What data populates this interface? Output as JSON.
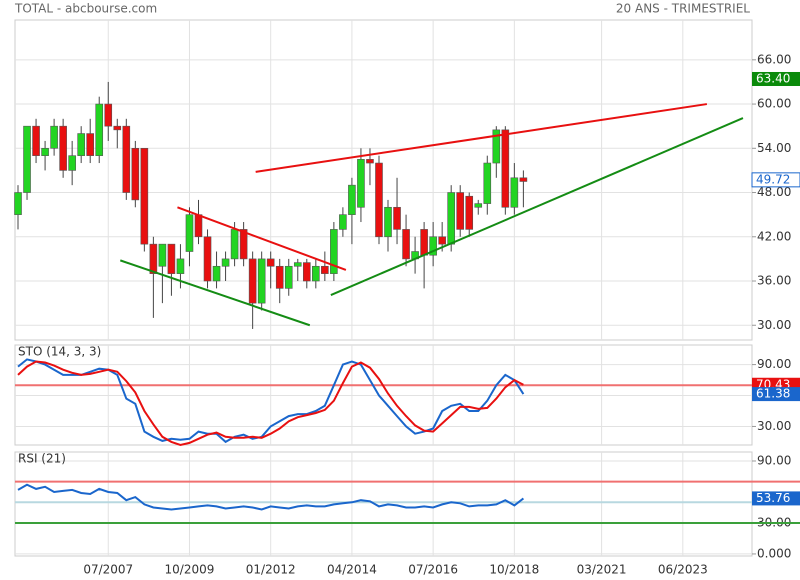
{
  "chart_data": [
    {
      "type": "candlestick",
      "title": "TOTAL - abcbourse.com",
      "subtitle": "20 ANS - TRIMESTRIEL",
      "x": [
        "2005-01",
        "2005-04",
        "2005-07",
        "2005-10",
        "2006-01",
        "2006-04",
        "2006-07",
        "2006-10",
        "2007-01",
        "2007-04",
        "2007-07",
        "2007-10",
        "2008-01",
        "2008-04",
        "2008-07",
        "2008-10",
        "2009-01",
        "2009-04",
        "2009-07",
        "2009-10",
        "2010-01",
        "2010-04",
        "2010-07",
        "2010-10",
        "2011-01",
        "2011-04",
        "2011-07",
        "2011-10",
        "2012-01",
        "2012-04",
        "2012-07",
        "2012-10",
        "2013-01",
        "2013-04",
        "2013-07",
        "2013-10",
        "2014-01",
        "2014-04",
        "2014-07",
        "2014-10",
        "2015-01",
        "2015-04",
        "2015-07",
        "2015-10",
        "2016-01",
        "2016-04",
        "2016-07",
        "2016-10",
        "2017-01",
        "2017-04",
        "2017-07",
        "2017-10",
        "2018-01",
        "2018-04",
        "2018-07",
        "2018-10",
        "2019-01"
      ],
      "open": [
        45,
        48,
        57,
        53,
        54,
        57,
        51,
        53,
        56,
        53,
        60,
        57,
        57,
        54,
        54,
        41,
        38,
        41,
        37,
        40,
        45,
        42,
        36,
        38,
        39,
        43,
        39,
        33,
        39,
        38,
        35,
        38,
        38.5,
        36,
        38,
        37,
        43,
        45,
        46,
        52.5,
        52,
        42,
        46,
        43,
        39,
        43,
        39.5,
        42,
        41,
        48,
        47.5,
        46,
        46.5,
        52,
        56.5,
        46,
        50
      ],
      "high": [
        49,
        57,
        58,
        55,
        58,
        58,
        55,
        57,
        58,
        61,
        63,
        58,
        58,
        55,
        54,
        42,
        41,
        41,
        41,
        46,
        47,
        43,
        40,
        40,
        44,
        44,
        40,
        40,
        40,
        39,
        39,
        39,
        39,
        39,
        40,
        44,
        46,
        50,
        54,
        54,
        53,
        47,
        50,
        45,
        42,
        44,
        44,
        44,
        49,
        49,
        48,
        47,
        53,
        57,
        57,
        52,
        51
      ],
      "low": [
        43,
        47,
        52,
        51,
        53,
        50,
        49,
        52,
        52,
        52,
        55,
        54,
        47,
        46,
        40,
        31,
        33,
        34,
        35,
        38,
        41,
        35,
        35,
        36,
        38,
        38,
        29.5,
        32,
        35,
        33,
        34,
        36,
        35,
        35,
        36,
        36,
        42,
        41,
        44,
        49,
        41,
        40,
        41,
        38,
        37,
        35,
        38,
        40,
        40,
        42,
        42,
        45,
        45,
        50,
        45,
        45,
        46
      ],
      "close": [
        48,
        57,
        53,
        54,
        57,
        51,
        53,
        56,
        53,
        60,
        57,
        56.5,
        48,
        47,
        41,
        37,
        41,
        37,
        39,
        45,
        42,
        36,
        38,
        39,
        43,
        39,
        33,
        39,
        38,
        35,
        38,
        38.5,
        36,
        38,
        37,
        43,
        45,
        49,
        52.5,
        52,
        42,
        46,
        43,
        39,
        40,
        39.5,
        42,
        41,
        48,
        43,
        43,
        46.5,
        52,
        56.5,
        46,
        50,
        49.5
      ],
      "up_color": "#22d422",
      "down_color": "#e81010",
      "xlim": [
        "2004-12",
        "2025-05"
      ],
      "xticks": [
        {
          "value": "2007-07",
          "label": "07/2007"
        },
        {
          "value": "2009-10",
          "label": "10/2009"
        },
        {
          "value": "2012-01",
          "label": "01/2012"
        },
        {
          "value": "2014-04",
          "label": "04/2014"
        },
        {
          "value": "2016-07",
          "label": "07/2016"
        },
        {
          "value": "2018-10",
          "label": "10/2018"
        },
        {
          "value": "2021-03",
          "label": "03/2021"
        },
        {
          "value": "2023-06",
          "label": "06/2023"
        }
      ],
      "ylim": [
        28,
        71.4
      ],
      "yticks": [
        {
          "value": 66,
          "label": "66.00"
        },
        {
          "value": 60,
          "label": "60.00"
        },
        {
          "value": 54,
          "label": "54.00"
        },
        {
          "value": 48,
          "label": "48.00"
        },
        {
          "value": 42,
          "label": "42.00"
        },
        {
          "value": 36,
          "label": "36.00"
        },
        {
          "value": 30,
          "label": "30.00"
        }
      ],
      "grid": true,
      "trendlines": [
        {
          "color": "#e81010",
          "x": [
            "2009-06",
            "2014-02"
          ],
          "y": [
            46,
            37.5
          ]
        },
        {
          "color": "#148c14",
          "x": [
            "2007-11",
            "2013-02"
          ],
          "y": [
            38.8,
            30
          ]
        },
        {
          "color": "#e81010",
          "x": [
            "2011-08",
            "2024-02"
          ],
          "y": [
            50.8,
            60
          ]
        },
        {
          "color": "#148c14",
          "x": [
            "2013-09",
            "2025-02"
          ],
          "y": [
            34.1,
            58.1
          ]
        }
      ],
      "price_labels": [
        {
          "value": 63.4,
          "label": "63.40",
          "color": "#0a8a0a",
          "style": "filled"
        },
        {
          "value": 49.72,
          "label": "49.72",
          "color": "#1a66cc",
          "style": "outlined"
        }
      ]
    },
    {
      "type": "line",
      "title": "STO (14, 3, 3)",
      "x": [
        "2005-01",
        "2005-04",
        "2005-07",
        "2005-10",
        "2006-01",
        "2006-04",
        "2006-07",
        "2006-10",
        "2007-01",
        "2007-04",
        "2007-07",
        "2007-10",
        "2008-01",
        "2008-04",
        "2008-07",
        "2008-10",
        "2009-01",
        "2009-04",
        "2009-07",
        "2009-10",
        "2010-01",
        "2010-04",
        "2010-07",
        "2010-10",
        "2011-01",
        "2011-04",
        "2011-07",
        "2011-10",
        "2012-01",
        "2012-04",
        "2012-07",
        "2012-10",
        "2013-01",
        "2013-04",
        "2013-07",
        "2013-10",
        "2014-01",
        "2014-04",
        "2014-07",
        "2014-10",
        "2015-01",
        "2015-04",
        "2015-07",
        "2015-10",
        "2016-01",
        "2016-04",
        "2016-07",
        "2016-10",
        "2017-01",
        "2017-04",
        "2017-07",
        "2017-10",
        "2018-01",
        "2018-04",
        "2018-07",
        "2018-10",
        "2019-01"
      ],
      "series": [
        {
          "color": "#1a66cc",
          "values": [
            88,
            95,
            93,
            90,
            85,
            80,
            80,
            80,
            83,
            86,
            85,
            80,
            57,
            52,
            25,
            20,
            16,
            18,
            17,
            18,
            25,
            23,
            23,
            15,
            20,
            22,
            18,
            20,
            30,
            35,
            40,
            42,
            42,
            45,
            50,
            70,
            90,
            93,
            90,
            75,
            60,
            50,
            40,
            30,
            23,
            25,
            28,
            45,
            50,
            52,
            45,
            45,
            55,
            70,
            80,
            75,
            61.38
          ]
        },
        {
          "color": "#e81010",
          "values": [
            80,
            88,
            93,
            92,
            89,
            85,
            82,
            80,
            81,
            83,
            85,
            83,
            74,
            63,
            45,
            32,
            20,
            15,
            12,
            14,
            18,
            22,
            24,
            20,
            19,
            19,
            20,
            19,
            23,
            28,
            35,
            39,
            41,
            43,
            46,
            55,
            72,
            88,
            92,
            87,
            76,
            62,
            50,
            40,
            31,
            26,
            25,
            33,
            41,
            49,
            49,
            47,
            48,
            57,
            68,
            75,
            70.43
          ]
        }
      ],
      "ylim": [
        12,
        109
      ],
      "yticks": [
        {
          "value": 90,
          "label": "90.00"
        },
        {
          "value": 60,
          "label": "60.00"
        },
        {
          "value": 30,
          "label": "30.00"
        }
      ],
      "grid": true,
      "levels": [
        {
          "value": 70,
          "color": "#f07070"
        }
      ],
      "price_labels": [
        {
          "value": 70.43,
          "label": "70.43",
          "color": "#e81010",
          "style": "filled"
        },
        {
          "value": 61.38,
          "label": "61.38",
          "color": "#1a66cc",
          "style": "filled"
        }
      ]
    },
    {
      "type": "line",
      "title": "RSI (21)",
      "x": [
        "2005-01",
        "2005-04",
        "2005-07",
        "2005-10",
        "2006-01",
        "2006-04",
        "2006-07",
        "2006-10",
        "2007-01",
        "2007-04",
        "2007-07",
        "2007-10",
        "2008-01",
        "2008-04",
        "2008-07",
        "2008-10",
        "2009-01",
        "2009-04",
        "2009-07",
        "2009-10",
        "2010-01",
        "2010-04",
        "2010-07",
        "2010-10",
        "2011-01",
        "2011-04",
        "2011-07",
        "2011-10",
        "2012-01",
        "2012-04",
        "2012-07",
        "2012-10",
        "2013-01",
        "2013-04",
        "2013-07",
        "2013-10",
        "2014-01",
        "2014-04",
        "2014-07",
        "2014-10",
        "2015-01",
        "2015-04",
        "2015-07",
        "2015-10",
        "2016-01",
        "2016-04",
        "2016-07",
        "2016-10",
        "2017-01",
        "2017-04",
        "2017-07",
        "2017-10",
        "2018-01",
        "2018-04",
        "2018-07",
        "2018-10",
        "2019-01"
      ],
      "series": [
        {
          "color": "#1a66cc",
          "values": [
            62,
            67,
            63,
            65,
            60,
            61,
            62,
            59,
            58,
            63,
            60,
            59,
            52,
            55,
            48,
            45,
            44,
            43,
            44,
            45,
            46,
            47,
            46,
            44,
            45,
            46,
            45,
            43,
            46,
            45,
            44,
            46,
            47,
            46,
            46,
            48,
            49,
            50,
            52,
            51,
            46,
            48,
            47,
            45,
            45,
            46,
            45,
            48,
            50,
            49,
            46,
            47,
            47,
            48,
            52,
            47,
            53.76
          ]
        }
      ],
      "ylim": [
        -2,
        98.7
      ],
      "yticks": [
        {
          "value": 90,
          "label": "90.00"
        },
        {
          "value": 30,
          "label": "30.00"
        },
        {
          "value": 0,
          "label": "0.000"
        }
      ],
      "grid": true,
      "levels": [
        {
          "value": 70,
          "color": "#f07070"
        },
        {
          "value": 50,
          "color": "#b8d8e0"
        },
        {
          "value": 30,
          "color": "#3aa03a"
        }
      ],
      "price_labels": [
        {
          "value": 53.76,
          "label": "53.76",
          "color": "#1a66cc",
          "style": "filled"
        }
      ]
    }
  ]
}
